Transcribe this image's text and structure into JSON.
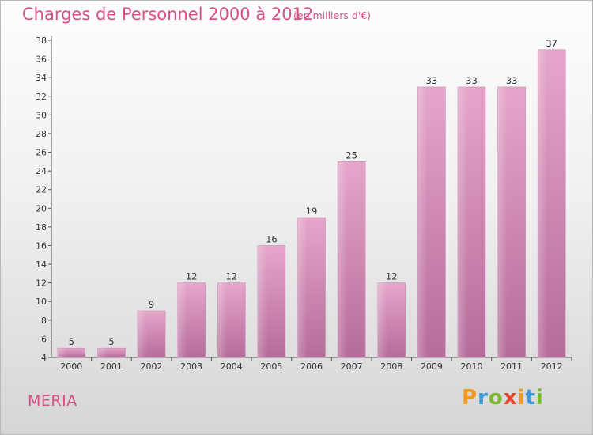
{
  "header": {
    "title": "Charges de Personnel 2000 à 2012",
    "subtitle": "(en milliers d'€)"
  },
  "footer": {
    "place": "MERIA",
    "brand": "Proxiti"
  },
  "colors": {
    "bar_top": "#e6a6cb",
    "bar_bottom": "#b56c9a",
    "title": "#d94f88"
  },
  "chart_data": {
    "type": "bar",
    "categories": [
      "2000",
      "2001",
      "2002",
      "2003",
      "2004",
      "2005",
      "2006",
      "2007",
      "2008",
      "2009",
      "2010",
      "2011",
      "2012"
    ],
    "values": [
      5,
      5,
      9,
      12,
      12,
      16,
      19,
      25,
      12,
      33,
      33,
      33,
      37
    ],
    "title": "Charges de Personnel 2000 à 2012",
    "subtitle": "(en milliers d'€)",
    "xlabel": "",
    "ylabel": "",
    "ylim": [
      4,
      38
    ],
    "yticks": [
      4,
      6,
      8,
      10,
      12,
      14,
      16,
      18,
      20,
      22,
      24,
      26,
      28,
      30,
      32,
      34,
      36,
      38
    ],
    "grid": false,
    "legend": "none"
  }
}
